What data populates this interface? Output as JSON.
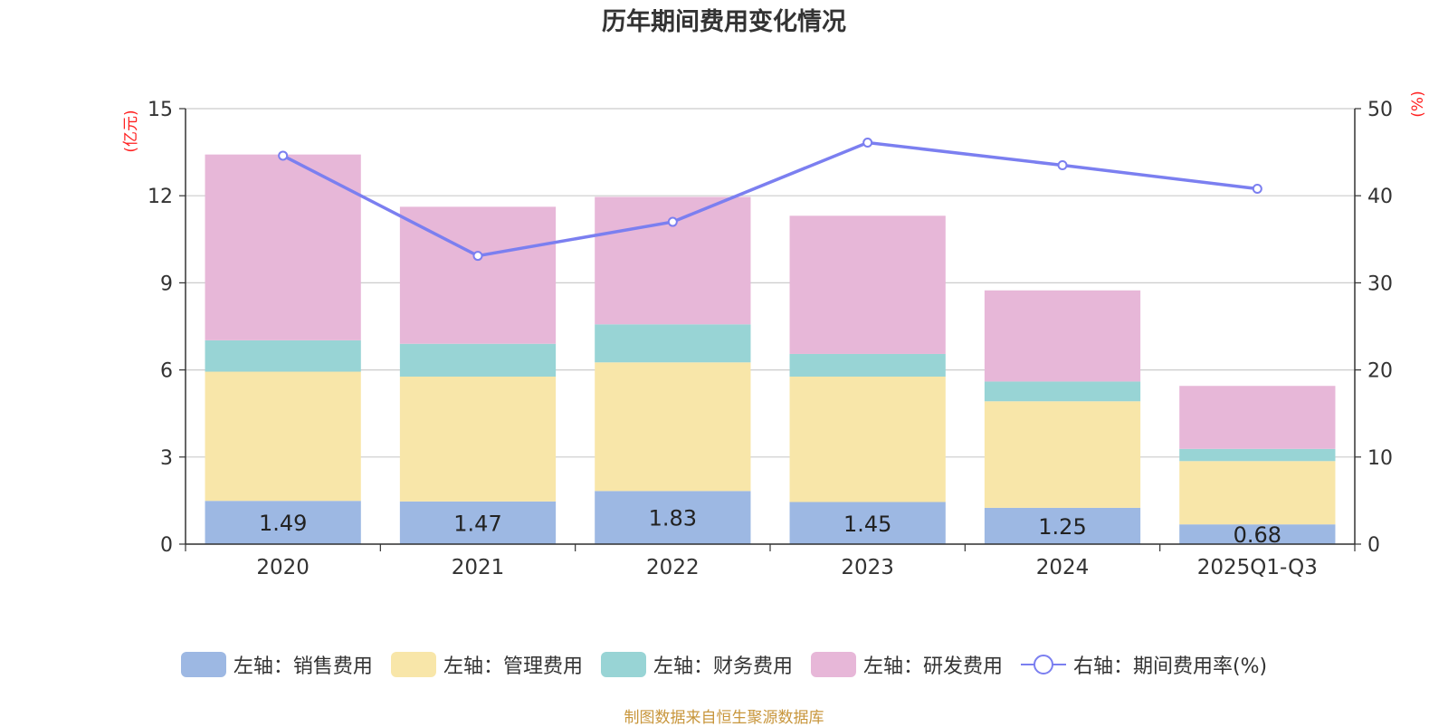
{
  "chart_data": {
    "type": "bar",
    "title": "历年期间费用变化情况",
    "categories": [
      "2020",
      "2021",
      "2022",
      "2023",
      "2024",
      "2025Q1-Q3"
    ],
    "left_axis": {
      "label": "(亿元)",
      "ylim": [
        0,
        15
      ],
      "ticks": [
        0,
        3,
        6,
        9,
        12,
        15
      ]
    },
    "right_axis": {
      "label": "(%)",
      "ylim": [
        0,
        50
      ],
      "ticks": [
        0,
        10,
        20,
        30,
        40,
        50
      ]
    },
    "series": [
      {
        "name": "左轴：销售费用",
        "axis": "left",
        "kind": "bar",
        "color": "#9db8e3",
        "values": [
          1.49,
          1.47,
          1.83,
          1.45,
          1.25,
          0.68
        ],
        "show_labels": true
      },
      {
        "name": "左轴：管理费用",
        "axis": "left",
        "kind": "bar",
        "color": "#f8e6a9",
        "values": [
          4.45,
          4.3,
          4.43,
          4.32,
          3.67,
          2.18
        ],
        "show_labels": false
      },
      {
        "name": "左轴：财务费用",
        "axis": "left",
        "kind": "bar",
        "color": "#98d4d5",
        "values": [
          1.08,
          1.13,
          1.31,
          0.78,
          0.68,
          0.42
        ],
        "show_labels": false
      },
      {
        "name": "左轴：研发费用",
        "axis": "left",
        "kind": "bar",
        "color": "#e7b7d8",
        "values": [
          6.4,
          4.72,
          4.39,
          4.76,
          3.14,
          2.17
        ],
        "show_labels": false
      },
      {
        "name": "右轴：期间费用率(%)",
        "axis": "right",
        "kind": "line",
        "color": "#7b7ff0",
        "values": [
          44.6,
          33.1,
          37.0,
          46.1,
          43.5,
          40.8
        ]
      }
    ],
    "grid": true,
    "legend_position": "bottom"
  },
  "source_note": "制图数据来自恒生聚源数据库"
}
